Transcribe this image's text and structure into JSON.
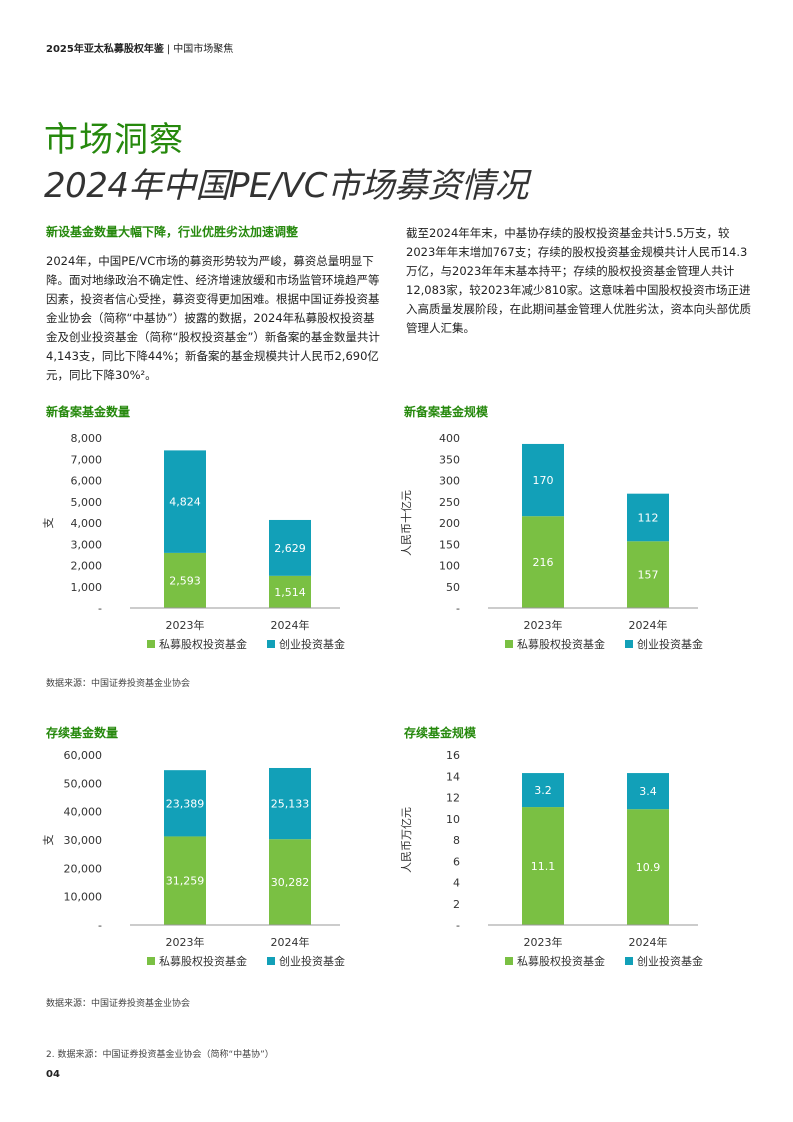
{
  "header": {
    "title": "2025年亚太私募股权年鉴",
    "sep": "|",
    "section": "中国市场聚焦"
  },
  "title_line1": "市场洞察",
  "title_line2": "2024年中国PE/VC市场募资情况",
  "lead": "新设基金数量大幅下降，行业优胜劣汰加速调整",
  "para1": "2024年，中国PE/VC市场的募资形势较为严峻，募资总量明显下降。面对地缘政治不确定性、经济增速放缓和市场监管环境趋严等因素，投资者信心受挫，募资变得更加困难。根据中国证券投资基金业协会（简称“中基协”）披露的数据，2024年私募股权投资基金及创业投资基金（简称“股权投资基金”）新备案的基金数量共计4,143支，同比下降44%；新备案的基金规模共计人民币2,690亿元，同比下降30%²。",
  "para2": "截至2024年年末，中基协存续的股权投资基金共计5.5万支，较2023年年末增加767支；存续的股权投资基金规模共计人民币14.3万亿，与2023年年末基本持平；存续的股权投资基金管理人共计12,083家，较2023年减少810家。这意味着中国股权投资市场正进入高质量发展阶段，在此期间基金管理人优胜劣汰，资本向头部优质管理人汇集。",
  "colors": {
    "green": "#7ac043",
    "teal": "#12a0b8",
    "brand": "#26890d"
  },
  "source1": "数据来源：中国证券投资基金业协会",
  "source2": "数据来源：中国证券投资基金业协会",
  "footnote": "2. 数据来源：中国证券投资基金业协会（简称“中基协”）",
  "page_number": "04",
  "chart_data": [
    {
      "type": "bar",
      "stacked": true,
      "title": "新备案基金数量",
      "ylabel": "支",
      "categories": [
        "2023年",
        "2024年"
      ],
      "series": [
        {
          "name": "私募股权投资基金",
          "values": [
            2593,
            1514
          ]
        },
        {
          "name": "创业投资基金",
          "values": [
            4824,
            2629
          ]
        }
      ],
      "ylim": [
        0,
        8000
      ],
      "yticks": [
        "-",
        "1,000",
        "2,000",
        "3,000",
        "4,000",
        "5,000",
        "6,000",
        "7,000",
        "8,000"
      ],
      "data_labels": [
        [
          "2,593",
          "1,514"
        ],
        [
          "4,824",
          "2,629"
        ]
      ],
      "legend": "bottom"
    },
    {
      "type": "bar",
      "stacked": true,
      "title": "新备案基金规模",
      "ylabel": "人民币十亿元",
      "categories": [
        "2023年",
        "2024年"
      ],
      "series": [
        {
          "name": "私募股权投资基金",
          "values": [
            216,
            157
          ]
        },
        {
          "name": "创业投资基金",
          "values": [
            170,
            112
          ]
        }
      ],
      "ylim": [
        0,
        400
      ],
      "yticks": [
        "-",
        "50",
        "100",
        "150",
        "200",
        "250",
        "300",
        "350",
        "400"
      ],
      "data_labels": [
        [
          "216",
          "157"
        ],
        [
          "170",
          "112"
        ]
      ],
      "legend": "bottom"
    },
    {
      "type": "bar",
      "stacked": true,
      "title": "存续基金数量",
      "ylabel": "支",
      "categories": [
        "2023年",
        "2024年"
      ],
      "series": [
        {
          "name": "私募股权投资基金",
          "values": [
            31259,
            30282
          ]
        },
        {
          "name": "创业投资基金",
          "values": [
            23389,
            25133
          ]
        }
      ],
      "ylim": [
        0,
        60000
      ],
      "yticks": [
        "-",
        "10,000",
        "20,000",
        "30,000",
        "40,000",
        "50,000",
        "60,000"
      ],
      "data_labels": [
        [
          "31,259",
          "30,282"
        ],
        [
          "23,389",
          "25,133"
        ]
      ],
      "legend": "bottom"
    },
    {
      "type": "bar",
      "stacked": true,
      "title": "存续基金规模",
      "ylabel": "人民币万亿元",
      "categories": [
        "2023年",
        "2024年"
      ],
      "series": [
        {
          "name": "私募股权投资基金",
          "values": [
            11.1,
            10.9
          ]
        },
        {
          "name": "创业投资基金",
          "values": [
            3.2,
            3.4
          ]
        }
      ],
      "ylim": [
        0,
        16
      ],
      "yticks": [
        "-",
        "2",
        "4",
        "6",
        "8",
        "10",
        "12",
        "14",
        "16"
      ],
      "data_labels": [
        [
          "11.1",
          "10.9"
        ],
        [
          "3.2",
          "3.4"
        ]
      ],
      "legend": "bottom"
    }
  ]
}
